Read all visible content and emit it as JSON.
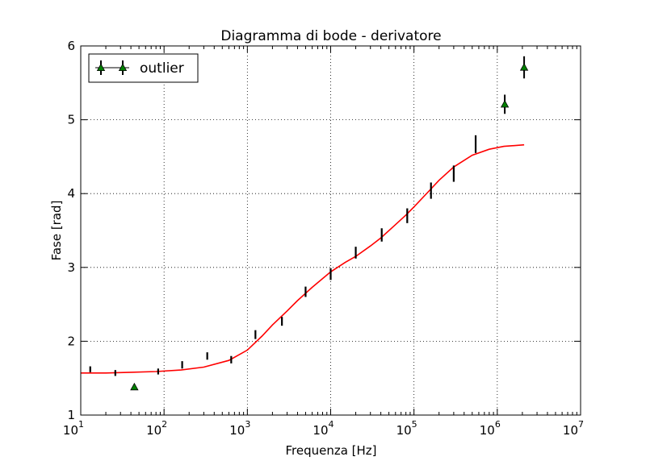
{
  "chart_data": {
    "type": "scatter",
    "title": "Diagramma di bode - derivatore",
    "xlabel": "Frequenza [Hz]",
    "ylabel": "Fase [rad]",
    "xscale": "log",
    "xlim": [
      10,
      10000000
    ],
    "ylim": [
      1,
      6
    ],
    "grid": true,
    "legend": {
      "placement": "top-left",
      "entries": [
        "outlier"
      ]
    },
    "x_ticks": [
      {
        "base": "10",
        "exp": "1",
        "value": 10
      },
      {
        "base": "10",
        "exp": "2",
        "value": 100
      },
      {
        "base": "10",
        "exp": "3",
        "value": 1000
      },
      {
        "base": "10",
        "exp": "4",
        "value": 10000
      },
      {
        "base": "10",
        "exp": "5",
        "value": 100000
      },
      {
        "base": "10",
        "exp": "6",
        "value": 1000000
      },
      {
        "base": "10",
        "exp": "7",
        "value": 10000000
      }
    ],
    "y_ticks": [
      "1",
      "2",
      "3",
      "4",
      "5",
      "6"
    ],
    "series": [
      {
        "kind": "errorbar",
        "color": "#000000",
        "points": [
          {
            "x": 13,
            "y": 1.62,
            "err": 0.04
          },
          {
            "x": 26,
            "y": 1.57,
            "err": 0.04
          },
          {
            "x": 85,
            "y": 1.59,
            "err": 0.04
          },
          {
            "x": 165,
            "y": 1.68,
            "err": 0.05
          },
          {
            "x": 330,
            "y": 1.8,
            "err": 0.05
          },
          {
            "x": 640,
            "y": 1.75,
            "err": 0.05
          },
          {
            "x": 1250,
            "y": 2.09,
            "err": 0.06
          },
          {
            "x": 2600,
            "y": 2.27,
            "err": 0.06
          },
          {
            "x": 5000,
            "y": 2.67,
            "err": 0.07
          },
          {
            "x": 10000,
            "y": 2.91,
            "err": 0.08
          },
          {
            "x": 20000,
            "y": 3.2,
            "err": 0.08
          },
          {
            "x": 41000,
            "y": 3.44,
            "err": 0.09
          },
          {
            "x": 83000,
            "y": 3.7,
            "err": 0.1
          },
          {
            "x": 160000,
            "y": 4.04,
            "err": 0.11
          },
          {
            "x": 300000,
            "y": 4.27,
            "err": 0.11
          },
          {
            "x": 550000,
            "y": 4.67,
            "err": 0.12
          }
        ]
      },
      {
        "name": "outlier",
        "kind": "errorbar-marker",
        "color": "#008000",
        "marker": "triangle",
        "points": [
          {
            "x": 44,
            "y": 1.38,
            "err": 0.03
          },
          {
            "x": 1230000,
            "y": 5.21,
            "err": 0.13
          },
          {
            "x": 2100000,
            "y": 5.71,
            "err": 0.15
          }
        ]
      },
      {
        "kind": "fit-line",
        "color": "#ff0000",
        "x": [
          10,
          20,
          40,
          80,
          160,
          300,
          600,
          1000,
          1500,
          2000,
          3000,
          4000,
          6000,
          10000,
          15000,
          20000,
          30000,
          40000,
          60000,
          80000,
          100000,
          150000,
          200000,
          300000,
          500000,
          800000,
          1200000,
          2100000
        ],
        "y": [
          1.57,
          1.57,
          1.58,
          1.59,
          1.61,
          1.65,
          1.74,
          1.88,
          2.07,
          2.22,
          2.41,
          2.55,
          2.73,
          2.94,
          3.07,
          3.15,
          3.29,
          3.4,
          3.58,
          3.71,
          3.82,
          4.03,
          4.18,
          4.36,
          4.52,
          4.6,
          4.64,
          4.66
        ]
      }
    ]
  }
}
